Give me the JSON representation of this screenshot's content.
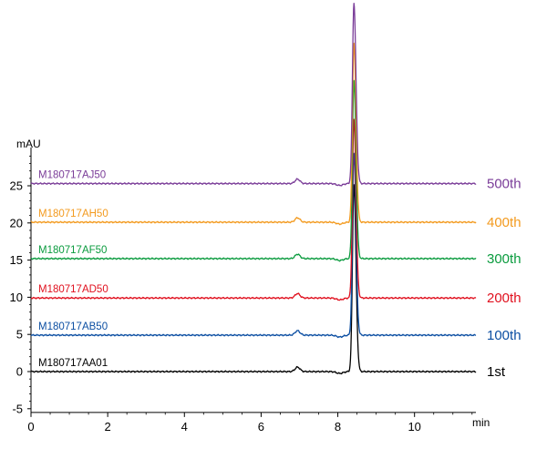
{
  "chart_data": {
    "type": "line",
    "title": "",
    "xlabel": "min",
    "ylabel": "mAU",
    "xlim": [
      0,
      11.6
    ],
    "ylim": [
      -5.5,
      31
    ],
    "x_ticks": [
      0,
      2,
      4,
      6,
      8,
      10
    ],
    "y_ticks": [
      -5,
      0,
      5,
      10,
      15,
      20,
      25
    ],
    "grid": false,
    "series": [
      {
        "name": "M180717AA01",
        "run_label": "1st",
        "color": "#000000",
        "baseline": 0.0,
        "peaks": [
          {
            "x": 6.95,
            "height": 0.6
          },
          {
            "x": 8.42,
            "height": 25.2
          }
        ]
      },
      {
        "name": "M180717AB50",
        "run_label": "100th",
        "color": "#0b4ea2",
        "baseline": 4.9,
        "peaks": [
          {
            "x": 6.95,
            "height": 0.6
          },
          {
            "x": 8.42,
            "height": 24.5
          }
        ]
      },
      {
        "name": "M180717AD50",
        "run_label": "200th",
        "color": "#e0101e",
        "baseline": 9.9,
        "peaks": [
          {
            "x": 6.95,
            "height": 0.6
          },
          {
            "x": 8.42,
            "height": 24.0
          }
        ]
      },
      {
        "name": "M180717AF50",
        "run_label": "300th",
        "color": "#0a9b3e",
        "baseline": 15.2,
        "peaks": [
          {
            "x": 6.95,
            "height": 0.6
          },
          {
            "x": 8.42,
            "height": 23.9
          }
        ]
      },
      {
        "name": "M180717AH50",
        "run_label": "400th",
        "color": "#f39a1e",
        "baseline": 20.1,
        "peaks": [
          {
            "x": 6.95,
            "height": 0.6
          },
          {
            "x": 8.42,
            "height": 24.1
          }
        ]
      },
      {
        "name": "M180717AJ50",
        "run_label": "500th",
        "color": "#7a3c98",
        "baseline": 25.3,
        "peaks": [
          {
            "x": 6.95,
            "height": 0.6
          },
          {
            "x": 8.42,
            "height": 24.3
          }
        ]
      }
    ]
  }
}
